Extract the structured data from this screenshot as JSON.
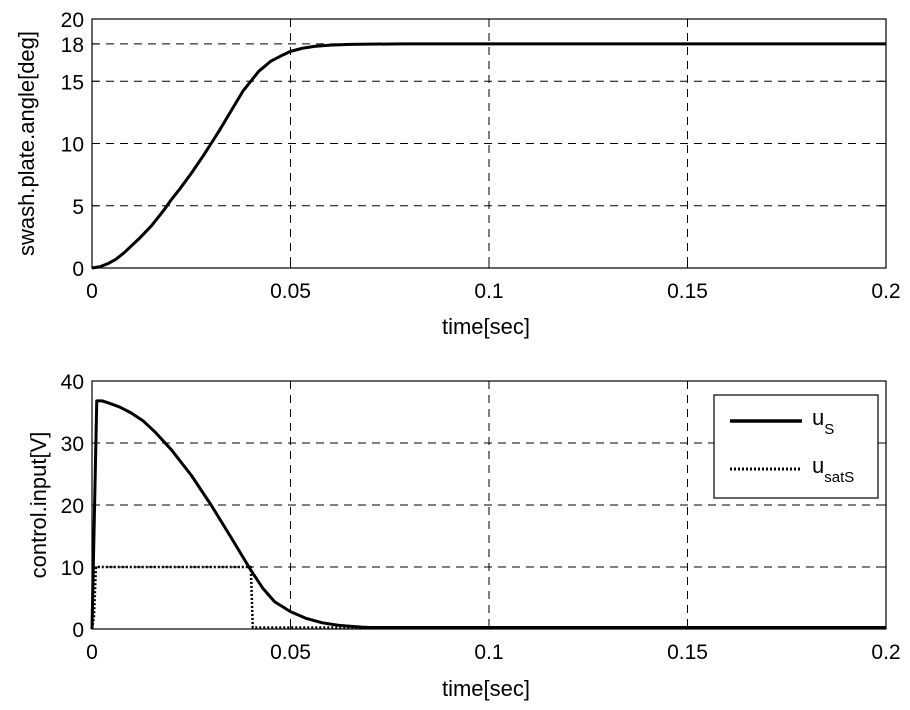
{
  "chart_data": [
    {
      "type": "line",
      "xlabel": "time[sec]",
      "ylabel": "swash.plate.angle[deg]",
      "xlim": [
        0,
        0.2
      ],
      "ylim": [
        0,
        20
      ],
      "xticks": [
        0,
        0.05,
        0.1,
        0.15,
        0.2
      ],
      "xtick_labels": [
        "0",
        "0.05",
        "0.1",
        "0.15",
        "0.2"
      ],
      "yticks": [
        0,
        5,
        10,
        15,
        18,
        20
      ],
      "ytick_labels": [
        "0",
        "5",
        "10",
        "15",
        "18",
        "20"
      ],
      "grid": true,
      "series": [
        {
          "style": "solid",
          "color": "#000000",
          "x": [
            0,
            0.002,
            0.004,
            0.006,
            0.008,
            0.01,
            0.012,
            0.015,
            0.018,
            0.02,
            0.022,
            0.025,
            0.028,
            0.03,
            0.032,
            0.035,
            0.038,
            0.04,
            0.042,
            0.045,
            0.048,
            0.05,
            0.053,
            0.056,
            0.06,
            0.065,
            0.07,
            0.078,
            0.1,
            0.15,
            0.2
          ],
          "values": [
            0,
            0.1,
            0.35,
            0.7,
            1.2,
            1.8,
            2.4,
            3.4,
            4.6,
            5.5,
            6.3,
            7.6,
            9.0,
            10.0,
            11.0,
            12.6,
            14.2,
            15.0,
            15.8,
            16.6,
            17.1,
            17.4,
            17.65,
            17.8,
            17.9,
            17.96,
            17.98,
            18.0,
            18.0,
            18.0,
            18.0
          ]
        }
      ]
    },
    {
      "type": "line",
      "xlabel": "time[sec]",
      "ylabel": "control.input[V]",
      "xlim": [
        0,
        0.2
      ],
      "ylim": [
        0,
        40
      ],
      "xticks": [
        0,
        0.05,
        0.1,
        0.15,
        0.2
      ],
      "xtick_labels": [
        "0",
        "0.05",
        "0.1",
        "0.15",
        "0.2"
      ],
      "yticks": [
        0,
        10,
        20,
        30,
        40
      ],
      "ytick_labels": [
        "0",
        "10",
        "20",
        "30",
        "40"
      ],
      "grid": true,
      "legend": {
        "position": "top-right",
        "entries": [
          {
            "main": "u",
            "sub": "S"
          },
          {
            "main": "u",
            "sub": "satS"
          }
        ]
      },
      "series": [
        {
          "style": "solid",
          "color": "#000000",
          "x": [
            0,
            0.0012,
            0.0025,
            0.004,
            0.007,
            0.01,
            0.013,
            0.016,
            0.02,
            0.025,
            0.03,
            0.035,
            0.04,
            0.043,
            0.046,
            0.05,
            0.054,
            0.058,
            0.062,
            0.065,
            0.068,
            0.07,
            0.1,
            0.15,
            0.2
          ],
          "values": [
            0,
            36.8,
            36.8,
            36.5,
            35.8,
            34.8,
            33.5,
            31.7,
            28.9,
            24.8,
            20.0,
            14.8,
            9.5,
            6.6,
            4.4,
            2.8,
            1.7,
            1.0,
            0.6,
            0.45,
            0.3,
            0.25,
            0.25,
            0.25,
            0.25
          ]
        },
        {
          "style": "dotted",
          "color": "#000000",
          "x": [
            0,
            0.0005,
            0.001,
            0.002,
            0.04,
            0.0405,
            0.07,
            0.1,
            0.15,
            0.2
          ],
          "values": [
            0,
            2,
            10,
            10,
            10,
            0.25,
            0.25,
            0.25,
            0.25,
            0.25
          ]
        }
      ]
    }
  ]
}
